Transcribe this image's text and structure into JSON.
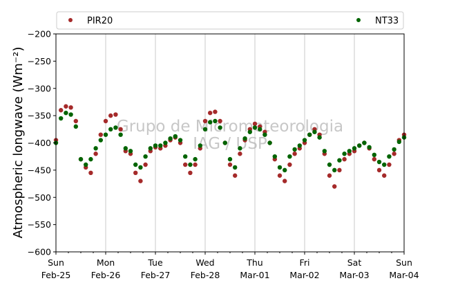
{
  "chart_data": {
    "type": "scatter",
    "title": "",
    "xlabel": "",
    "ylabel": "Atmospheric longwave (Wm⁻²)",
    "ylim": [
      -600,
      -200
    ],
    "yticks": [
      -600,
      -550,
      -500,
      -450,
      -400,
      -350,
      -300,
      -250,
      -200
    ],
    "xlim": [
      "2018-02-25",
      "2018-03-04"
    ],
    "xtick_labels": [
      [
        "Sun",
        "Feb-25"
      ],
      [
        "Mon",
        "Feb-26"
      ],
      [
        "Tue",
        "Feb-27"
      ],
      [
        "Wed",
        "Feb-28"
      ],
      [
        "Thu",
        "Mar-01"
      ],
      [
        "Fri",
        "Mar-02"
      ],
      [
        "Sat",
        "Mar-03"
      ],
      [
        "Sun",
        "Mar-04"
      ]
    ],
    "grid": "vertical",
    "legend": {
      "placement": "top",
      "entries": [
        "PIR20",
        "NT33"
      ]
    },
    "watermark": [
      "Grupo de Micrometeorologia",
      "IAG / USP"
    ],
    "series": [
      {
        "name": "PIR20",
        "color": "#a52a2a",
        "x_days": [
          0.0,
          0.1,
          0.2,
          0.3,
          0.4,
          0.5,
          0.6,
          0.7,
          0.8,
          0.9,
          1.0,
          1.1,
          1.2,
          1.3,
          1.4,
          1.5,
          1.6,
          1.7,
          1.8,
          1.9,
          2.0,
          2.1,
          2.2,
          2.3,
          2.4,
          2.5,
          2.6,
          2.7,
          2.8,
          2.9,
          3.0,
          3.1,
          3.2,
          3.3,
          3.4,
          3.5,
          3.6,
          3.7,
          3.8,
          3.9,
          4.0,
          4.1,
          4.2,
          4.3,
          4.4,
          4.5,
          4.6,
          4.7,
          4.8,
          4.9,
          5.0,
          5.1,
          5.2,
          5.3,
          5.4,
          5.5,
          5.6,
          5.7,
          5.8,
          5.9,
          6.0,
          6.1,
          6.2,
          6.3,
          6.4,
          6.5,
          6.6,
          6.7,
          6.8,
          6.9,
          7.0
        ],
        "y": [
          -395,
          -340,
          -333,
          -335,
          -360,
          -430,
          -445,
          -455,
          -420,
          -385,
          -360,
          -350,
          -348,
          -375,
          -415,
          -420,
          -455,
          -470,
          -440,
          -415,
          -408,
          -410,
          -405,
          -395,
          -390,
          -400,
          -440,
          -455,
          -440,
          -410,
          -360,
          -345,
          -343,
          -360,
          -400,
          -440,
          -460,
          -420,
          -395,
          -375,
          -365,
          -370,
          -380,
          -400,
          -430,
          -460,
          -470,
          -440,
          -420,
          -410,
          -400,
          -385,
          -375,
          -385,
          -420,
          -460,
          -480,
          -450,
          -430,
          -420,
          -415,
          -405,
          -400,
          -410,
          -430,
          -450,
          -460,
          -440,
          -420,
          -395,
          -385
        ]
      },
      {
        "name": "NT33",
        "color": "#006400",
        "x_days": [
          0.0,
          0.1,
          0.2,
          0.3,
          0.4,
          0.5,
          0.6,
          0.7,
          0.8,
          0.9,
          1.0,
          1.1,
          1.2,
          1.3,
          1.4,
          1.5,
          1.6,
          1.7,
          1.8,
          1.9,
          2.0,
          2.1,
          2.2,
          2.3,
          2.4,
          2.5,
          2.6,
          2.7,
          2.8,
          2.9,
          3.0,
          3.1,
          3.2,
          3.3,
          3.4,
          3.5,
          3.6,
          3.7,
          3.8,
          3.9,
          4.0,
          4.1,
          4.2,
          4.3,
          4.4,
          4.5,
          4.6,
          4.7,
          4.8,
          4.9,
          5.0,
          5.1,
          5.2,
          5.3,
          5.4,
          5.5,
          5.6,
          5.7,
          5.8,
          5.9,
          6.0,
          6.1,
          6.2,
          6.3,
          6.4,
          6.5,
          6.6,
          6.7,
          6.8,
          6.9,
          7.0
        ],
        "y": [
          -400,
          -355,
          -345,
          -348,
          -370,
          -430,
          -440,
          -430,
          -410,
          -395,
          -385,
          -375,
          -372,
          -385,
          -410,
          -415,
          -440,
          -445,
          -425,
          -410,
          -405,
          -405,
          -400,
          -392,
          -388,
          -395,
          -425,
          -440,
          -430,
          -405,
          -375,
          -362,
          -360,
          -372,
          -400,
          -430,
          -445,
          -410,
          -392,
          -380,
          -372,
          -375,
          -385,
          -400,
          -425,
          -445,
          -450,
          -425,
          -412,
          -405,
          -395,
          -385,
          -380,
          -390,
          -415,
          -440,
          -450,
          -432,
          -420,
          -415,
          -410,
          -405,
          -400,
          -408,
          -422,
          -435,
          -440,
          -425,
          -412,
          -398,
          -390
        ]
      }
    ]
  }
}
